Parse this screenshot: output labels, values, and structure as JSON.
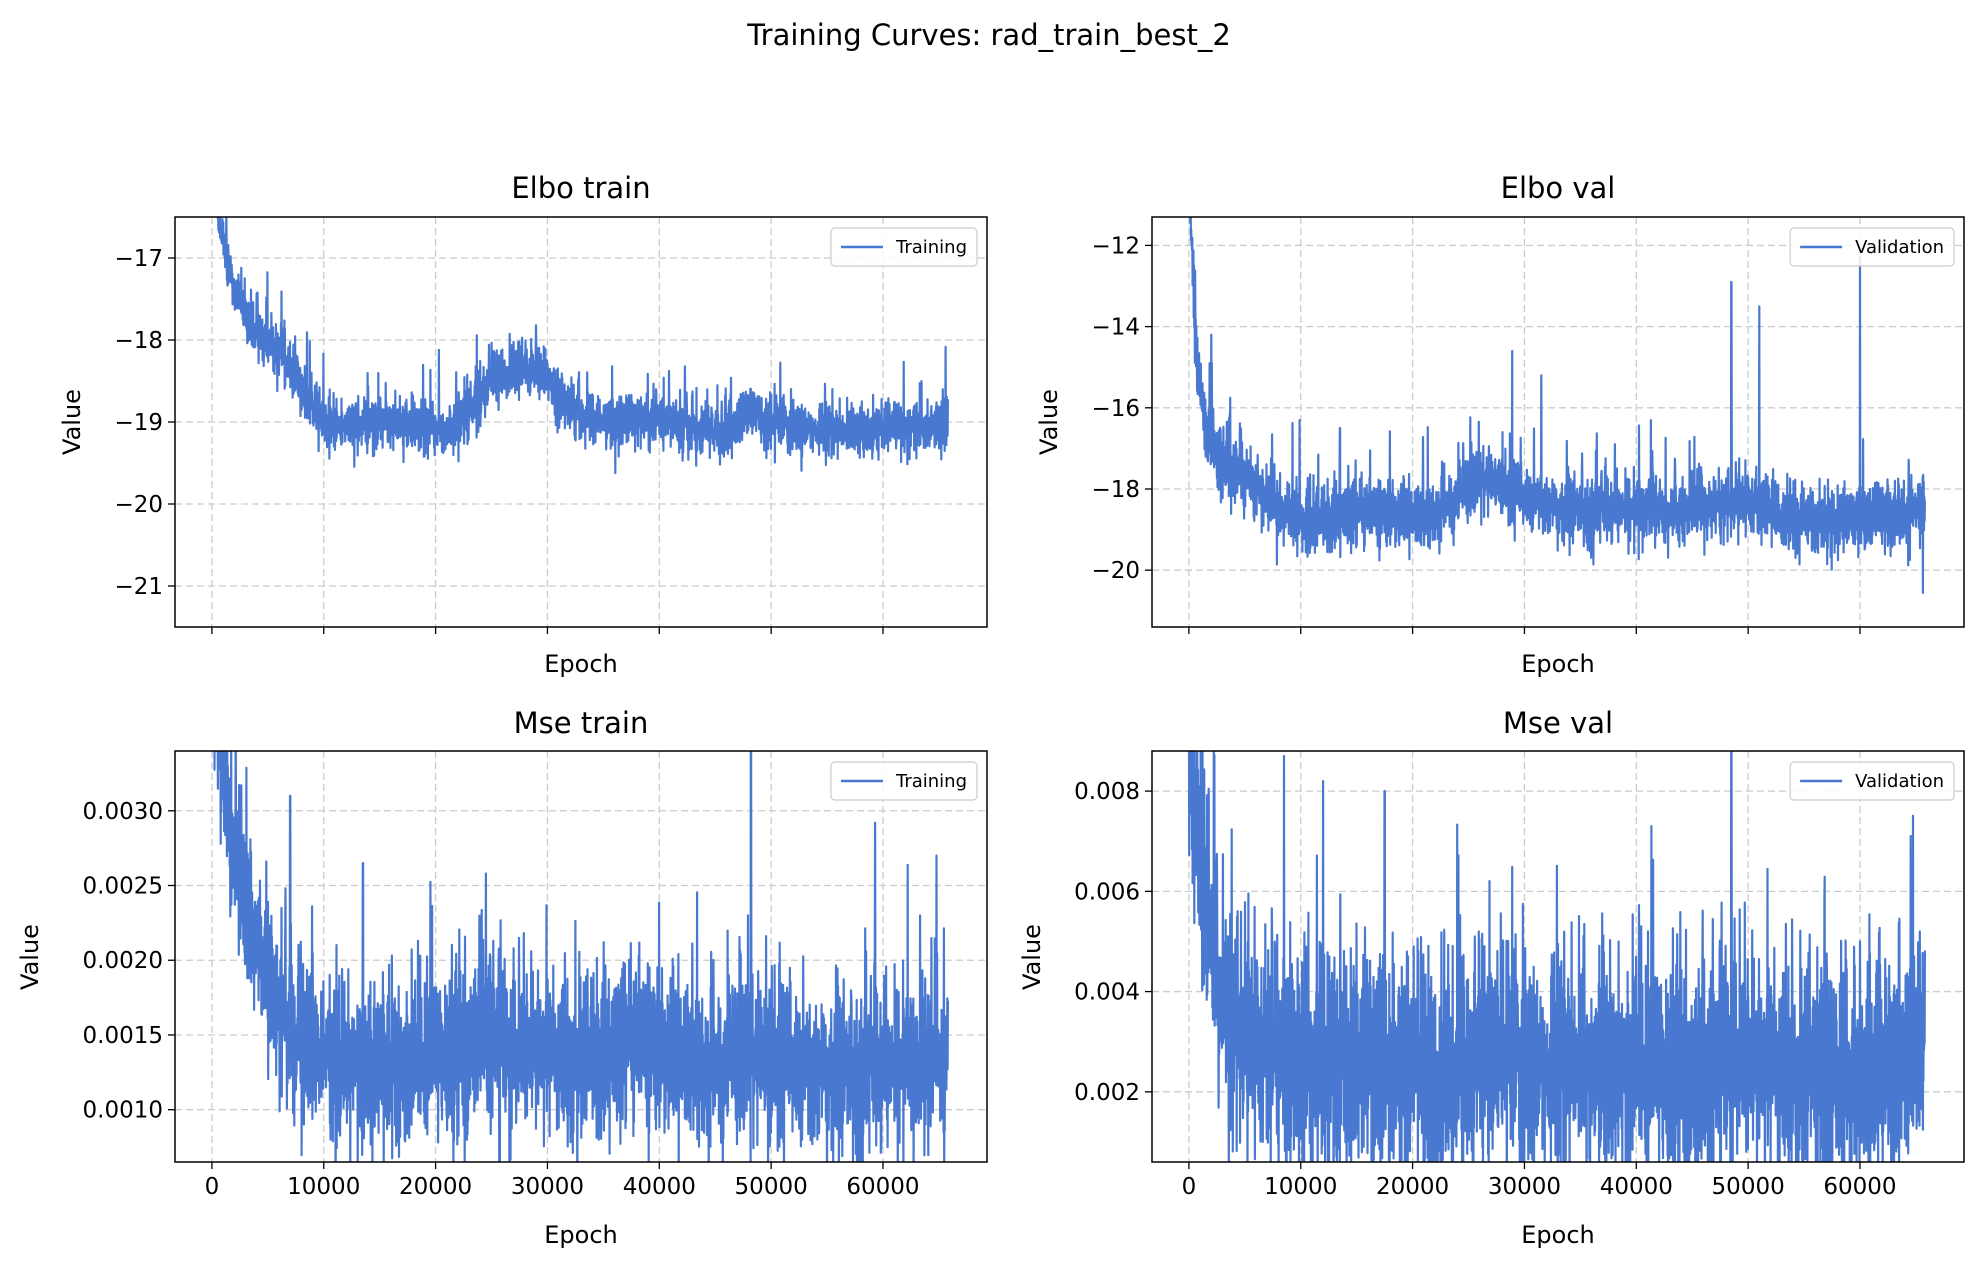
{
  "figure": {
    "title": "Training Curves: rad_train_best_2",
    "series_color": "#4878cf",
    "grid_color": "#cccccc"
  },
  "chart_data": [
    {
      "type": "line",
      "title": "Elbo train",
      "xlabel": "Epoch",
      "ylabel": "Value",
      "xlim": [
        -3300,
        69300
      ],
      "ylim": [
        -21.5,
        -16.5
      ],
      "x_ticks": [
        0,
        10000,
        20000,
        30000,
        40000,
        50000,
        60000
      ],
      "x_tick_labels_visible": false,
      "y_ticks": [
        -17,
        -18,
        -19,
        -20,
        -21
      ],
      "y_tick_labels": [
        "−17",
        "−18",
        "−19",
        "−20",
        "−21"
      ],
      "grid": true,
      "legend_position": "upper right",
      "series": [
        {
          "name": "Training",
          "noise": 0.17,
          "spike_prob": 0.02,
          "spike_size": 0.5,
          "envelope": [
            [
              0,
              -15.8
            ],
            [
              800,
              -16.7
            ],
            [
              2000,
              -17.4
            ],
            [
              3500,
              -17.8
            ],
            [
              5000,
              -18.0
            ],
            [
              6500,
              -18.2
            ],
            [
              8000,
              -18.6
            ],
            [
              10000,
              -19.0
            ],
            [
              12000,
              -19.05
            ],
            [
              15000,
              -19.0
            ],
            [
              18000,
              -19.05
            ],
            [
              21000,
              -19.1
            ],
            [
              23000,
              -18.9
            ],
            [
              25000,
              -18.5
            ],
            [
              27000,
              -18.35
            ],
            [
              29000,
              -18.35
            ],
            [
              31000,
              -18.7
            ],
            [
              33000,
              -18.9
            ],
            [
              35000,
              -19.0
            ],
            [
              38000,
              -18.95
            ],
            [
              41000,
              -19.0
            ],
            [
              44000,
              -19.1
            ],
            [
              46000,
              -19.15
            ],
            [
              48000,
              -18.9
            ],
            [
              50000,
              -19.0
            ],
            [
              52000,
              -19.05
            ],
            [
              55000,
              -19.1
            ],
            [
              58000,
              -19.15
            ],
            [
              61000,
              -19.05
            ],
            [
              63000,
              -19.05
            ],
            [
              65500,
              -19.05
            ]
          ]
        }
      ]
    },
    {
      "type": "line",
      "title": "Elbo val",
      "xlabel": "Epoch",
      "ylabel": "Value",
      "xlim": [
        -3300,
        69300
      ],
      "ylim": [
        -21.4,
        -11.3
      ],
      "x_ticks": [
        0,
        10000,
        20000,
        30000,
        40000,
        50000,
        60000
      ],
      "x_tick_labels_visible": false,
      "y_ticks": [
        -12,
        -14,
        -16,
        -18,
        -20
      ],
      "y_tick_labels": [
        "−12",
        "−14",
        "−16",
        "−18",
        "−20"
      ],
      "grid": true,
      "legend_position": "upper right",
      "series": [
        {
          "name": "Validation",
          "noise": 0.45,
          "spike_prob": 0.015,
          "spike_size": 1.4,
          "spikes": [
            [
              28900,
              -14.6
            ],
            [
              31500,
              -15.2
            ],
            [
              48500,
              -12.9
            ],
            [
              51000,
              -13.5
            ],
            [
              60000,
              -12.3
            ],
            [
              2000,
              -14.2
            ],
            [
              9900,
              -16.3
            ],
            [
              13500,
              -16.5
            ]
          ],
          "envelope": [
            [
              0,
              -10.5
            ],
            [
              700,
              -14.5
            ],
            [
              1500,
              -16.5
            ],
            [
              3000,
              -17.3
            ],
            [
              5000,
              -17.8
            ],
            [
              8000,
              -18.4
            ],
            [
              10000,
              -18.8
            ],
            [
              14000,
              -18.6
            ],
            [
              18000,
              -18.6
            ],
            [
              21000,
              -18.7
            ],
            [
              24000,
              -18.3
            ],
            [
              26000,
              -17.6
            ],
            [
              28000,
              -17.9
            ],
            [
              30000,
              -18.2
            ],
            [
              33000,
              -18.5
            ],
            [
              36000,
              -18.5
            ],
            [
              40000,
              -18.5
            ],
            [
              44000,
              -18.6
            ],
            [
              47000,
              -18.4
            ],
            [
              50000,
              -18.3
            ],
            [
              53000,
              -18.7
            ],
            [
              57000,
              -18.8
            ],
            [
              61000,
              -18.7
            ],
            [
              64000,
              -18.6
            ],
            [
              65500,
              -18.4
            ]
          ]
        }
      ]
    },
    {
      "type": "line",
      "title": "Mse train",
      "xlabel": "Epoch",
      "ylabel": "Value",
      "xlim": [
        -3300,
        69300
      ],
      "ylim": [
        0.00065,
        0.0034
      ],
      "x_ticks": [
        0,
        10000,
        20000,
        30000,
        40000,
        50000,
        60000
      ],
      "x_tick_labels": [
        "0",
        "10000",
        "20000",
        "30000",
        "40000",
        "50000",
        "60000"
      ],
      "x_tick_labels_visible": true,
      "y_ticks": [
        0.001,
        0.0015,
        0.002,
        0.0025,
        0.003
      ],
      "y_tick_labels": [
        "0.0010",
        "0.0015",
        "0.0020",
        "0.0025",
        "0.0030"
      ],
      "grid": true,
      "legend_position": "upper right",
      "series": [
        {
          "name": "Training",
          "noise": 0.0003,
          "spike_prob": 0.02,
          "spike_size": 0.0006,
          "spikes": [
            [
              24500,
              0.00258
            ],
            [
              48200,
              0.0036
            ],
            [
              59300,
              0.00292
            ],
            [
              7000,
              0.0031
            ],
            [
              13500,
              0.00265
            ]
          ],
          "envelope": [
            [
              0,
              0.004
            ],
            [
              1500,
              0.003
            ],
            [
              3000,
              0.0024
            ],
            [
              5000,
              0.0019
            ],
            [
              7000,
              0.00155
            ],
            [
              10000,
              0.00135
            ],
            [
              14000,
              0.00135
            ],
            [
              18000,
              0.0013
            ],
            [
              22000,
              0.0014
            ],
            [
              24500,
              0.0016
            ],
            [
              27000,
              0.00145
            ],
            [
              31000,
              0.00135
            ],
            [
              35000,
              0.0014
            ],
            [
              38000,
              0.00145
            ],
            [
              42000,
              0.00135
            ],
            [
              46000,
              0.00125
            ],
            [
              48000,
              0.00145
            ],
            [
              50000,
              0.00135
            ],
            [
              54000,
              0.00125
            ],
            [
              58000,
              0.00125
            ],
            [
              61000,
              0.0013
            ],
            [
              65500,
              0.0013
            ]
          ]
        }
      ]
    },
    {
      "type": "line",
      "title": "Mse val",
      "xlabel": "Epoch",
      "ylabel": "Value",
      "xlim": [
        -3300,
        69300
      ],
      "ylim": [
        0.0006,
        0.0088
      ],
      "x_ticks": [
        0,
        10000,
        20000,
        30000,
        40000,
        50000,
        60000
      ],
      "x_tick_labels": [
        "0",
        "10000",
        "20000",
        "30000",
        "40000",
        "50000",
        "60000"
      ],
      "x_tick_labels_visible": true,
      "y_ticks": [
        0.002,
        0.004,
        0.006,
        0.008
      ],
      "y_tick_labels": [
        "0.002",
        "0.004",
        "0.006",
        "0.008"
      ],
      "grid": true,
      "legend_position": "upper right",
      "series": [
        {
          "name": "Validation",
          "noise": 0.0012,
          "spike_prob": 0.025,
          "spike_size": 0.0025,
          "spikes": [
            [
              8500,
              0.0087
            ],
            [
              12000,
              0.0082
            ],
            [
              48500,
              0.0092
            ],
            [
              17500,
              0.008
            ]
          ],
          "envelope": [
            [
              0,
              0.009
            ],
            [
              1000,
              0.006
            ],
            [
              2500,
              0.0042
            ],
            [
              4500,
              0.0032
            ],
            [
              7000,
              0.0028
            ],
            [
              10000,
              0.0026
            ],
            [
              14000,
              0.0026
            ],
            [
              18000,
              0.0026
            ],
            [
              22000,
              0.0024
            ],
            [
              26000,
              0.0027
            ],
            [
              30000,
              0.0026
            ],
            [
              34000,
              0.0025
            ],
            [
              38000,
              0.0025
            ],
            [
              42000,
              0.0024
            ],
            [
              46000,
              0.0024
            ],
            [
              48500,
              0.003
            ],
            [
              51000,
              0.0025
            ],
            [
              55000,
              0.0024
            ],
            [
              59000,
              0.0024
            ],
            [
              63000,
              0.0025
            ],
            [
              65500,
              0.003
            ]
          ]
        }
      ]
    }
  ]
}
